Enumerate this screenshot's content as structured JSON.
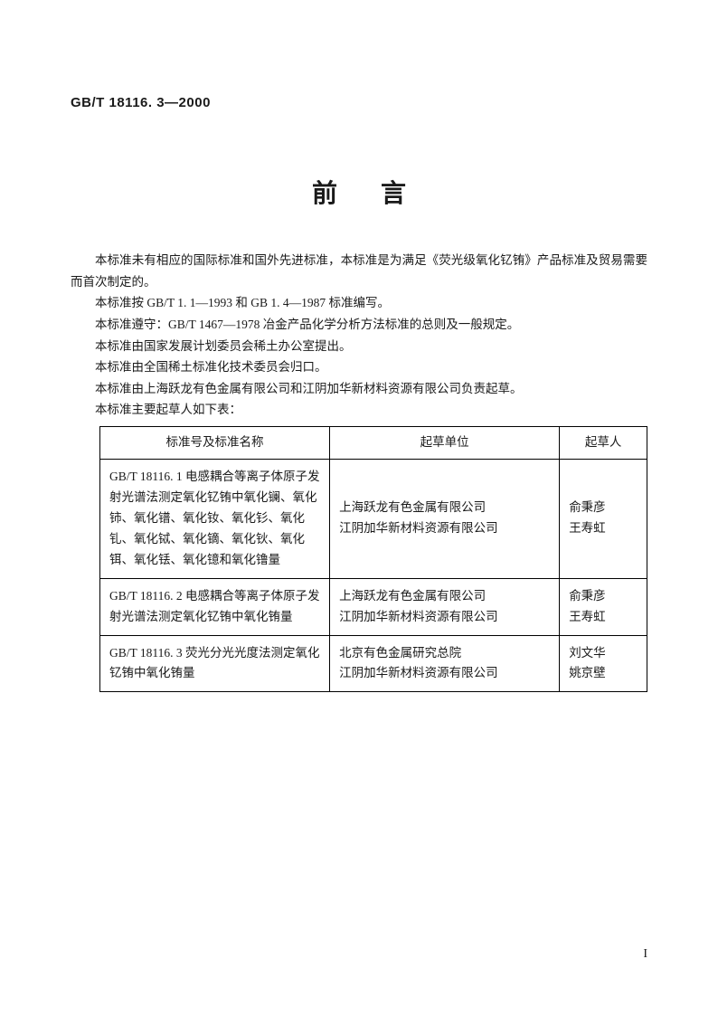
{
  "standard_number": "GB/T 18116. 3—2000",
  "title": "前言",
  "paragraphs": [
    "本标准未有相应的国际标准和国外先进标准，本标准是为满足《荧光级氧化钇铕》产品标准及贸易需要而首次制定的。",
    "本标准按 GB/T 1. 1—1993 和 GB 1. 4—1987 标准编写。",
    "本标准遵守：GB/T 1467—1978 冶金产品化学分析方法标准的总则及一般规定。",
    "本标准由国家发展计划委员会稀土办公室提出。",
    "本标准由全国稀土标准化技术委员会归口。",
    "本标准由上海跃龙有色金属有限公司和江阴加华新材料资源有限公司负责起草。",
    "本标准主要起草人如下表："
  ],
  "table": {
    "headers": [
      "标准号及标准名称",
      "起草单位",
      "起草人"
    ],
    "rows": [
      {
        "name": "GB/T 18116. 1 电感耦合等离子体原子发射光谱法测定氧化钇铕中氧化镧、氧化铈、氧化镨、氧化钕、氧化钐、氧化钆、氧化铽、氧化镝、氧化钬、氧化铒、氧化铥、氧化镱和氧化镥量",
        "org": "上海跃龙有色金属有限公司\n江阴加华新材料资源有限公司",
        "auth": "俞秉彦\n王寿虹"
      },
      {
        "name": "GB/T 18116. 2 电感耦合等离子体原子发射光谱法测定氧化钇铕中氧化铕量",
        "org": "上海跃龙有色金属有限公司\n江阴加华新材料资源有限公司",
        "auth": "俞秉彦\n王寿虹"
      },
      {
        "name": "GB/T 18116. 3 荧光分光光度法测定氧化钇铕中氧化铕量",
        "org": "北京有色金属研究总院\n江阴加华新材料资源有限公司",
        "auth": "刘文华\n姚京壁"
      }
    ]
  },
  "page_number": "I"
}
